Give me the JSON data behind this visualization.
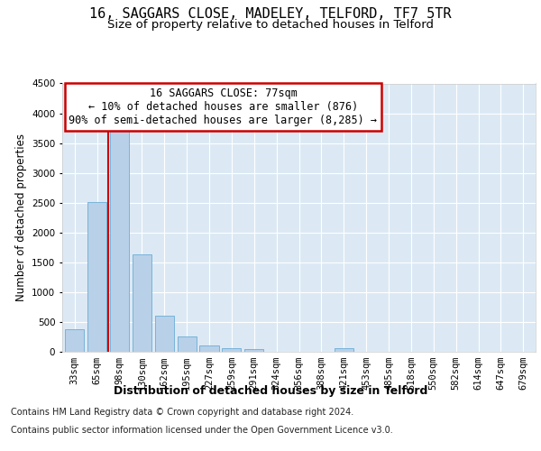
{
  "title": "16, SAGGARS CLOSE, MADELEY, TELFORD, TF7 5TR",
  "subtitle": "Size of property relative to detached houses in Telford",
  "xlabel": "Distribution of detached houses by size in Telford",
  "ylabel": "Number of detached properties",
  "categories": [
    "33sqm",
    "65sqm",
    "98sqm",
    "130sqm",
    "162sqm",
    "195sqm",
    "227sqm",
    "259sqm",
    "291sqm",
    "324sqm",
    "356sqm",
    "388sqm",
    "421sqm",
    "453sqm",
    "485sqm",
    "518sqm",
    "550sqm",
    "582sqm",
    "614sqm",
    "647sqm",
    "679sqm"
  ],
  "values": [
    375,
    2510,
    3720,
    1640,
    600,
    250,
    110,
    65,
    50,
    0,
    0,
    0,
    60,
    0,
    0,
    0,
    0,
    0,
    0,
    0,
    0
  ],
  "bar_color": "#b8d0e8",
  "bar_edge_color": "#6aadd5",
  "vline_x": 1.5,
  "vline_color": "#cc0000",
  "annotation_text": "16 SAGGARS CLOSE: 77sqm\n← 10% of detached houses are smaller (876)\n90% of semi-detached houses are larger (8,285) →",
  "annotation_box_color": "#ffffff",
  "annotation_box_edge": "#cc0000",
  "ylim": [
    0,
    4500
  ],
  "yticks": [
    0,
    500,
    1000,
    1500,
    2000,
    2500,
    3000,
    3500,
    4000,
    4500
  ],
  "footer_line1": "Contains HM Land Registry data © Crown copyright and database right 2024.",
  "footer_line2": "Contains public sector information licensed under the Open Government Licence v3.0.",
  "bg_color": "#ffffff",
  "plot_bg_color": "#dce9f5",
  "grid_color": "#ffffff",
  "title_fontsize": 11,
  "subtitle_fontsize": 9.5,
  "xlabel_fontsize": 9,
  "ylabel_fontsize": 8.5,
  "tick_fontsize": 7.5,
  "annotation_fontsize": 8.5,
  "footer_fontsize": 7
}
